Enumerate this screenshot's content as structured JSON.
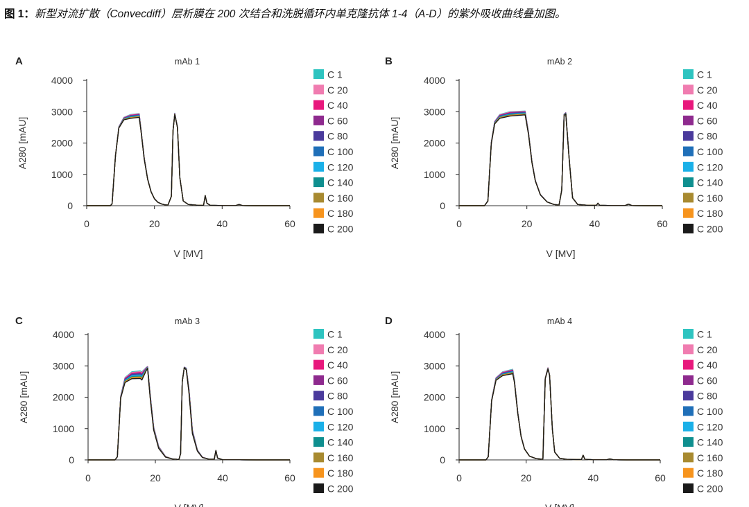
{
  "caption": {
    "label": "图 1：",
    "text": "新型对流扩散（Convecdiff）层析膜在 200 次结合和洗脱循环内单克隆抗体 1-4（A-D）的紫外吸收曲线叠加图。"
  },
  "legend": [
    {
      "name": "C 1",
      "color": "#2ec4c0"
    },
    {
      "name": "C 20",
      "color": "#f07cb0"
    },
    {
      "name": "C 40",
      "color": "#e8187c"
    },
    {
      "name": "C 60",
      "color": "#8e2a8e"
    },
    {
      "name": "C 80",
      "color": "#4a3a9c"
    },
    {
      "name": "C 100",
      "color": "#1f6fb8"
    },
    {
      "name": "C 120",
      "color": "#1ab0e8"
    },
    {
      "name": "C 140",
      "color": "#0f8f8f"
    },
    {
      "name": "C 160",
      "color": "#a88a30"
    },
    {
      "name": "C 180",
      "color": "#f7941d"
    },
    {
      "name": "C 200",
      "color": "#1a1a1a"
    }
  ],
  "chart_data": [
    {
      "panel": "A",
      "type": "line",
      "title": "mAb 1",
      "xlabel": "V [MV]",
      "ylabel": "A280 [mAU]",
      "xlim": [
        0,
        60
      ],
      "ylim": [
        0,
        4000
      ],
      "xticks": [
        0,
        20,
        40,
        60
      ],
      "yticks": [
        0,
        1000,
        2000,
        3000,
        4000
      ],
      "series_x": [
        0,
        7,
        7.5,
        8.5,
        9.5,
        11,
        13,
        15.5,
        16,
        17,
        18,
        19,
        20,
        21,
        22,
        23,
        24,
        25,
        25.5,
        26,
        26.8,
        27.5,
        28.5,
        30,
        33,
        34.5,
        35,
        35.5,
        36.5,
        40,
        44,
        45,
        46,
        50,
        60
      ],
      "series_y": [
        0,
        0,
        60,
        1600,
        2500,
        2780,
        2850,
        2880,
        2450,
        1500,
        850,
        450,
        220,
        110,
        60,
        30,
        20,
        300,
        2400,
        2930,
        2500,
        900,
        150,
        40,
        10,
        10,
        320,
        80,
        10,
        5,
        5,
        40,
        5,
        0,
        0
      ],
      "series_delta": [
        0,
        0,
        0,
        10,
        20,
        40,
        60,
        60,
        30,
        20,
        10,
        5,
        0,
        0,
        0,
        0,
        0,
        0,
        0,
        20,
        10,
        0,
        0,
        0,
        0,
        0,
        0,
        0,
        0,
        0,
        0,
        0,
        0,
        0,
        0
      ]
    },
    {
      "panel": "B",
      "type": "line",
      "title": "mAb 2",
      "xlabel": "V [MV]",
      "ylabel": "A280 [mAU]",
      "xlim": [
        0,
        60
      ],
      "ylim": [
        0,
        4000
      ],
      "xticks": [
        0,
        20,
        40,
        60
      ],
      "yticks": [
        0,
        1000,
        2000,
        3000,
        4000
      ],
      "series_x": [
        0,
        7.5,
        8.5,
        9.5,
        10.5,
        12,
        15,
        19.5,
        20.5,
        21.5,
        22.5,
        24,
        26,
        28,
        29.5,
        30.3,
        31,
        31.5,
        32.5,
        33.5,
        35,
        38,
        40.5,
        41,
        41.5,
        45,
        49,
        50,
        51,
        56,
        60
      ],
      "series_y": [
        0,
        0,
        150,
        2000,
        2650,
        2850,
        2930,
        2960,
        2300,
        1400,
        800,
        350,
        120,
        40,
        20,
        500,
        2900,
        2950,
        1500,
        250,
        40,
        10,
        10,
        80,
        10,
        5,
        5,
        50,
        5,
        0,
        0
      ],
      "series_delta": [
        0,
        0,
        0,
        20,
        40,
        60,
        70,
        60,
        30,
        20,
        10,
        5,
        0,
        0,
        0,
        0,
        20,
        20,
        10,
        0,
        0,
        0,
        0,
        0,
        0,
        0,
        0,
        0,
        0,
        0,
        0
      ]
    },
    {
      "panel": "C",
      "type": "line",
      "title": "mAb 3",
      "xlabel": "V [MV]",
      "ylabel": "A280 [mAU]",
      "xlim": [
        0,
        60
      ],
      "ylim": [
        0,
        4000
      ],
      "xticks": [
        0,
        20,
        40,
        60
      ],
      "yticks": [
        0,
        1000,
        2000,
        3000,
        4000
      ],
      "series_x": [
        0,
        8,
        8.7,
        9.7,
        11,
        13,
        15.5,
        16,
        17.3,
        17.7,
        18.5,
        19.5,
        21,
        23,
        25,
        27,
        27.5,
        28,
        28.6,
        29.2,
        30,
        31,
        32.5,
        34,
        36,
        37.5,
        38,
        38.5,
        40,
        45,
        50,
        56,
        60
      ],
      "series_y": [
        0,
        0,
        100,
        2000,
        2550,
        2700,
        2720,
        2680,
        2900,
        2950,
        2000,
        1000,
        400,
        100,
        30,
        10,
        200,
        2500,
        2950,
        2900,
        2200,
        900,
        300,
        80,
        20,
        20,
        300,
        60,
        5,
        5,
        0,
        0,
        0
      ],
      "series_delta": [
        0,
        0,
        0,
        30,
        80,
        110,
        120,
        130,
        50,
        30,
        60,
        50,
        30,
        10,
        0,
        0,
        0,
        10,
        10,
        30,
        60,
        60,
        20,
        5,
        0,
        0,
        0,
        0,
        0,
        0,
        0,
        0,
        0
      ]
    },
    {
      "panel": "D",
      "type": "line",
      "title": "mAb 4",
      "xlabel": "V [MV]",
      "ylabel": "A280 [mAU]",
      "xlim": [
        0,
        60
      ],
      "ylim": [
        0,
        4000
      ],
      "xticks": [
        0,
        20,
        40,
        60
      ],
      "yticks": [
        0,
        1000,
        2000,
        3000,
        4000
      ],
      "series_x": [
        0,
        8,
        8.7,
        9.7,
        11,
        13,
        16,
        16.5,
        17.5,
        18.5,
        19.5,
        21,
        23,
        25,
        25.7,
        26.5,
        27,
        27.8,
        28.5,
        30,
        32,
        35,
        36.5,
        37,
        37.5,
        40,
        44,
        45,
        46,
        50,
        58,
        60
      ],
      "series_y": [
        0,
        0,
        100,
        1900,
        2580,
        2750,
        2820,
        2500,
        1500,
        750,
        350,
        120,
        40,
        20,
        2600,
        2920,
        2700,
        1000,
        250,
        50,
        20,
        10,
        10,
        150,
        20,
        5,
        5,
        30,
        5,
        0,
        0,
        0
      ],
      "series_delta": [
        0,
        0,
        0,
        20,
        40,
        60,
        70,
        30,
        20,
        10,
        5,
        0,
        0,
        0,
        10,
        20,
        10,
        0,
        0,
        0,
        0,
        0,
        0,
        0,
        0,
        0,
        0,
        0,
        0,
        0,
        0,
        0
      ]
    }
  ]
}
